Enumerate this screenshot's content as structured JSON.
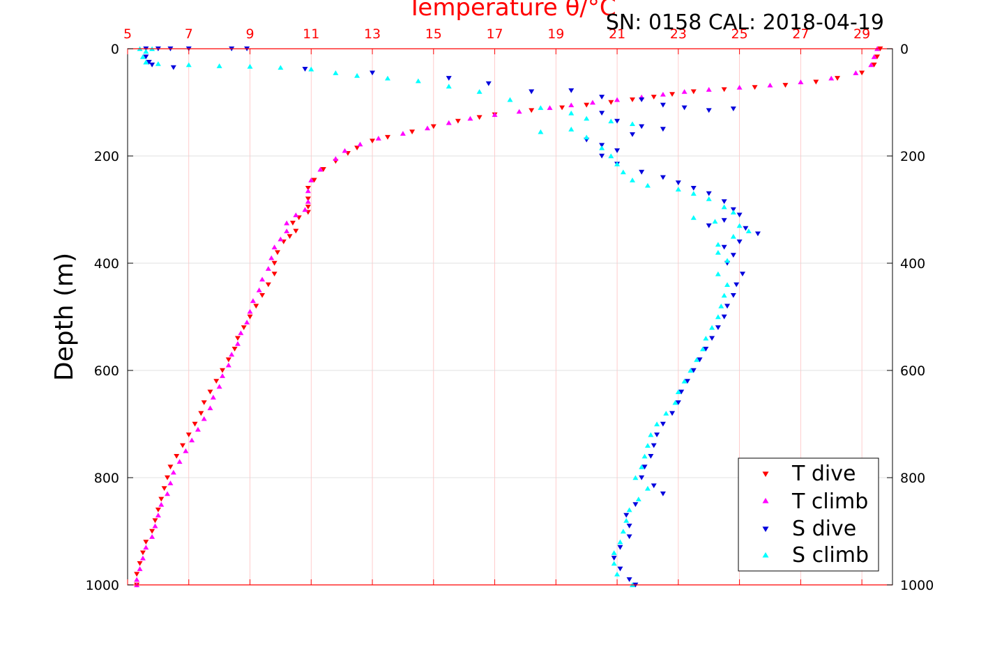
{
  "chart_data": {
    "type": "scatter",
    "title": "Temperature θ/°C",
    "subtitle": "SN: 0158  CAL: 2018-04-19",
    "ylabel": "Depth (m)",
    "xlim": [
      5,
      30
    ],
    "ylim": [
      0,
      1000
    ],
    "y_reversed": true,
    "xticks": [
      5,
      7,
      9,
      11,
      13,
      15,
      17,
      19,
      21,
      23,
      25,
      27,
      29
    ],
    "yticks": [
      0,
      200,
      400,
      600,
      800,
      1000
    ],
    "grid": true,
    "legend_position": "bottom-right",
    "colors": {
      "t_dive": "#ff0000",
      "t_climb": "#ff00ff",
      "s_dive": "#0000dd",
      "s_climb": "#00ffff",
      "axis": "#ff0000",
      "grid": "#d0d0d0"
    },
    "series": [
      {
        "name": "T dive",
        "marker": "triangle-down",
        "points": [
          [
            29.6,
            0
          ],
          [
            29.5,
            15
          ],
          [
            29.4,
            30
          ],
          [
            29.0,
            45
          ],
          [
            28.2,
            55
          ],
          [
            27.5,
            62
          ],
          [
            26.5,
            68
          ],
          [
            25.5,
            72
          ],
          [
            24.5,
            76
          ],
          [
            23.5,
            80
          ],
          [
            22.8,
            85
          ],
          [
            22.2,
            90
          ],
          [
            21.5,
            95
          ],
          [
            20.8,
            100
          ],
          [
            20.0,
            105
          ],
          [
            19.2,
            110
          ],
          [
            18.2,
            115
          ],
          [
            17.0,
            123
          ],
          [
            16.5,
            128
          ],
          [
            15.8,
            135
          ],
          [
            15.0,
            145
          ],
          [
            14.3,
            155
          ],
          [
            13.5,
            165
          ],
          [
            13.0,
            172
          ],
          [
            12.5,
            185
          ],
          [
            12.2,
            195
          ],
          [
            11.8,
            210
          ],
          [
            11.4,
            225
          ],
          [
            11.1,
            245
          ],
          [
            10.9,
            260
          ],
          [
            10.9,
            280
          ],
          [
            10.9,
            295
          ],
          [
            10.9,
            305
          ],
          [
            10.6,
            315
          ],
          [
            10.4,
            325
          ],
          [
            10.5,
            340
          ],
          [
            10.3,
            350
          ],
          [
            10.1,
            360
          ],
          [
            9.9,
            380
          ],
          [
            9.8,
            400
          ],
          [
            9.8,
            420
          ],
          [
            9.6,
            440
          ],
          [
            9.4,
            460
          ],
          [
            9.2,
            480
          ],
          [
            9.0,
            500
          ],
          [
            8.8,
            520
          ],
          [
            8.6,
            540
          ],
          [
            8.5,
            560
          ],
          [
            8.3,
            580
          ],
          [
            8.1,
            600
          ],
          [
            7.9,
            620
          ],
          [
            7.7,
            640
          ],
          [
            7.5,
            660
          ],
          [
            7.4,
            680
          ],
          [
            7.2,
            700
          ],
          [
            7.0,
            720
          ],
          [
            6.8,
            740
          ],
          [
            6.6,
            760
          ],
          [
            6.4,
            780
          ],
          [
            6.3,
            800
          ],
          [
            6.2,
            820
          ],
          [
            6.1,
            840
          ],
          [
            6.0,
            860
          ],
          [
            5.9,
            880
          ],
          [
            5.8,
            900
          ],
          [
            5.6,
            920
          ],
          [
            5.5,
            940
          ],
          [
            5.4,
            960
          ],
          [
            5.3,
            980
          ],
          [
            5.3,
            1000
          ]
        ]
      },
      {
        "name": "T climb",
        "marker": "triangle-up",
        "points": [
          [
            29.5,
            0
          ],
          [
            29.4,
            15
          ],
          [
            29.3,
            30
          ],
          [
            28.8,
            45
          ],
          [
            28.0,
            55
          ],
          [
            27.0,
            62
          ],
          [
            26.0,
            68
          ],
          [
            25.0,
            72
          ],
          [
            24.0,
            76
          ],
          [
            23.2,
            80
          ],
          [
            22.5,
            85
          ],
          [
            21.8,
            90
          ],
          [
            21.0,
            95
          ],
          [
            20.2,
            100
          ],
          [
            19.5,
            105
          ],
          [
            18.8,
            110
          ],
          [
            17.8,
            117
          ],
          [
            17.0,
            123
          ],
          [
            16.2,
            130
          ],
          [
            15.5,
            138
          ],
          [
            14.8,
            148
          ],
          [
            14.0,
            158
          ],
          [
            13.2,
            167
          ],
          [
            12.6,
            178
          ],
          [
            12.1,
            190
          ],
          [
            11.8,
            205
          ],
          [
            11.3,
            225
          ],
          [
            11.0,
            245
          ],
          [
            10.9,
            265
          ],
          [
            10.9,
            285
          ],
          [
            10.8,
            300
          ],
          [
            10.5,
            310
          ],
          [
            10.2,
            325
          ],
          [
            10.2,
            340
          ],
          [
            10.0,
            355
          ],
          [
            9.8,
            370
          ],
          [
            9.7,
            390
          ],
          [
            9.6,
            410
          ],
          [
            9.4,
            430
          ],
          [
            9.3,
            450
          ],
          [
            9.1,
            470
          ],
          [
            9.0,
            490
          ],
          [
            8.9,
            510
          ],
          [
            8.7,
            530
          ],
          [
            8.6,
            550
          ],
          [
            8.4,
            570
          ],
          [
            8.3,
            590
          ],
          [
            8.1,
            610
          ],
          [
            8.0,
            630
          ],
          [
            7.8,
            650
          ],
          [
            7.7,
            670
          ],
          [
            7.5,
            690
          ],
          [
            7.3,
            710
          ],
          [
            7.1,
            730
          ],
          [
            6.9,
            750
          ],
          [
            6.7,
            770
          ],
          [
            6.5,
            790
          ],
          [
            6.4,
            810
          ],
          [
            6.3,
            830
          ],
          [
            6.1,
            850
          ],
          [
            6.0,
            870
          ],
          [
            5.9,
            890
          ],
          [
            5.8,
            910
          ],
          [
            5.6,
            930
          ],
          [
            5.5,
            950
          ],
          [
            5.4,
            970
          ],
          [
            5.3,
            990
          ],
          [
            5.3,
            1000
          ]
        ]
      },
      {
        "name": "S dive",
        "marker": "triangle-down",
        "points": [
          [
            5.6,
            0
          ],
          [
            6.0,
            0
          ],
          [
            6.4,
            0
          ],
          [
            7.0,
            0
          ],
          [
            8.4,
            0
          ],
          [
            8.9,
            0
          ],
          [
            5.6,
            15
          ],
          [
            5.7,
            25
          ],
          [
            5.8,
            30
          ],
          [
            6.5,
            35
          ],
          [
            10.8,
            38
          ],
          [
            13.0,
            45
          ],
          [
            15.5,
            55
          ],
          [
            16.8,
            65
          ],
          [
            18.2,
            80
          ],
          [
            19.5,
            78
          ],
          [
            20.5,
            90
          ],
          [
            21.8,
            95
          ],
          [
            22.5,
            105
          ],
          [
            23.2,
            110
          ],
          [
            24.0,
            115
          ],
          [
            24.8,
            112
          ],
          [
            20.5,
            120
          ],
          [
            21.0,
            135
          ],
          [
            21.8,
            145
          ],
          [
            22.5,
            150
          ],
          [
            21.5,
            160
          ],
          [
            20.0,
            170
          ],
          [
            20.5,
            180
          ],
          [
            21.0,
            190
          ],
          [
            20.5,
            200
          ],
          [
            21.0,
            215
          ],
          [
            21.8,
            230
          ],
          [
            22.5,
            240
          ],
          [
            23.0,
            250
          ],
          [
            23.5,
            260
          ],
          [
            24.0,
            270
          ],
          [
            24.5,
            285
          ],
          [
            24.8,
            300
          ],
          [
            25.0,
            310
          ],
          [
            24.5,
            320
          ],
          [
            24.0,
            330
          ],
          [
            25.2,
            335
          ],
          [
            25.6,
            345
          ],
          [
            25.0,
            360
          ],
          [
            24.5,
            370
          ],
          [
            24.8,
            385
          ],
          [
            24.6,
            400
          ],
          [
            25.1,
            420
          ],
          [
            24.9,
            440
          ],
          [
            24.8,
            460
          ],
          [
            24.6,
            480
          ],
          [
            24.5,
            500
          ],
          [
            24.3,
            520
          ],
          [
            24.1,
            540
          ],
          [
            23.9,
            560
          ],
          [
            23.7,
            580
          ],
          [
            23.5,
            600
          ],
          [
            23.3,
            620
          ],
          [
            23.1,
            640
          ],
          [
            23.0,
            660
          ],
          [
            22.8,
            680
          ],
          [
            22.5,
            700
          ],
          [
            22.3,
            720
          ],
          [
            22.2,
            740
          ],
          [
            22.1,
            760
          ],
          [
            21.9,
            780
          ],
          [
            21.8,
            800
          ],
          [
            22.2,
            815
          ],
          [
            22.5,
            830
          ],
          [
            21.6,
            850
          ],
          [
            21.3,
            870
          ],
          [
            21.4,
            890
          ],
          [
            21.4,
            910
          ],
          [
            21.1,
            930
          ],
          [
            20.9,
            950
          ],
          [
            21.1,
            970
          ],
          [
            21.4,
            990
          ],
          [
            21.6,
            1000
          ]
        ]
      },
      {
        "name": "S climb",
        "marker": "triangle-up",
        "points": [
          [
            5.4,
            0
          ],
          [
            5.6,
            5
          ],
          [
            5.8,
            0
          ],
          [
            5.5,
            15
          ],
          [
            5.6,
            25
          ],
          [
            6.0,
            28
          ],
          [
            7.0,
            30
          ],
          [
            8.0,
            32
          ],
          [
            9.0,
            33
          ],
          [
            10.0,
            35
          ],
          [
            11.0,
            38
          ],
          [
            11.8,
            45
          ],
          [
            12.5,
            50
          ],
          [
            13.5,
            55
          ],
          [
            14.5,
            60
          ],
          [
            15.5,
            70
          ],
          [
            16.5,
            80
          ],
          [
            17.5,
            95
          ],
          [
            18.5,
            110
          ],
          [
            19.5,
            120
          ],
          [
            20.0,
            130
          ],
          [
            20.8,
            135
          ],
          [
            21.5,
            140
          ],
          [
            19.5,
            150
          ],
          [
            18.5,
            155
          ],
          [
            20.0,
            165
          ],
          [
            20.5,
            185
          ],
          [
            20.8,
            200
          ],
          [
            21.0,
            215
          ],
          [
            21.2,
            230
          ],
          [
            21.5,
            245
          ],
          [
            22.0,
            255
          ],
          [
            23.0,
            262
          ],
          [
            23.5,
            270
          ],
          [
            24.0,
            280
          ],
          [
            24.5,
            295
          ],
          [
            24.8,
            305
          ],
          [
            23.5,
            315
          ],
          [
            24.2,
            322
          ],
          [
            25.0,
            330
          ],
          [
            25.3,
            340
          ],
          [
            24.8,
            350
          ],
          [
            24.3,
            365
          ],
          [
            24.3,
            380
          ],
          [
            24.6,
            395
          ],
          [
            24.3,
            420
          ],
          [
            24.6,
            440
          ],
          [
            24.5,
            460
          ],
          [
            24.4,
            480
          ],
          [
            24.3,
            500
          ],
          [
            24.1,
            520
          ],
          [
            23.9,
            540
          ],
          [
            23.8,
            560
          ],
          [
            23.6,
            580
          ],
          [
            23.4,
            600
          ],
          [
            23.2,
            620
          ],
          [
            23.0,
            640
          ],
          [
            22.9,
            660
          ],
          [
            22.6,
            680
          ],
          [
            22.3,
            700
          ],
          [
            22.1,
            720
          ],
          [
            22.0,
            740
          ],
          [
            21.9,
            760
          ],
          [
            21.8,
            780
          ],
          [
            21.6,
            800
          ],
          [
            22.0,
            820
          ],
          [
            21.7,
            840
          ],
          [
            21.4,
            860
          ],
          [
            21.3,
            880
          ],
          [
            21.2,
            900
          ],
          [
            21.1,
            920
          ],
          [
            20.9,
            940
          ],
          [
            20.9,
            960
          ],
          [
            21.0,
            980
          ],
          [
            21.5,
            1000
          ]
        ]
      }
    ]
  }
}
